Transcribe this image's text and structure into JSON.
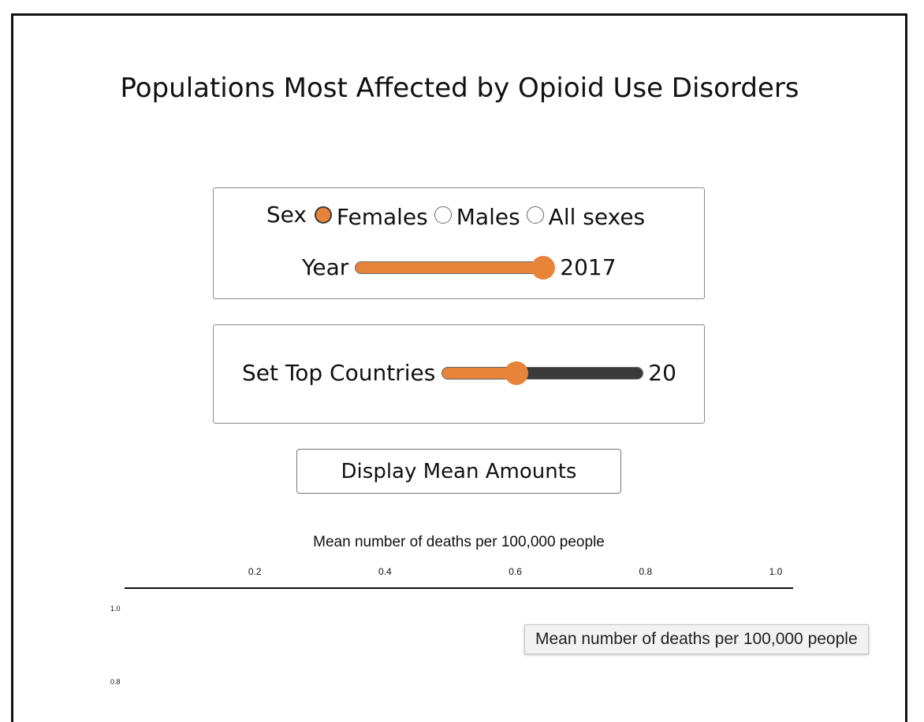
{
  "title": "Populations Most Affected by Opioid Use Disorders",
  "filters": {
    "sex_label": "Sex",
    "sex_options": [
      {
        "label": "Females",
        "checked": true
      },
      {
        "label": "Males",
        "checked": false
      },
      {
        "label": "All sexes",
        "checked": false
      }
    ],
    "year_label": "Year",
    "year_value": "2017",
    "year_slider_fraction": 1.0
  },
  "top_countries": {
    "label": "Set Top Countries",
    "value": "20",
    "slider_fraction": 0.35
  },
  "display_button_label": "Display Mean Amounts",
  "chart_data": {
    "type": "bar",
    "title": "",
    "xlabel": "Mean number of deaths per 100,000 people",
    "ylabel": "",
    "x_ticks": [
      "0.2",
      "0.4",
      "0.6",
      "0.8",
      "1.0"
    ],
    "y_ticks": [
      "1.0",
      "0.8"
    ],
    "xlim": [
      0,
      1
    ],
    "ylim": [
      0,
      1
    ],
    "categories": [],
    "values": []
  },
  "tooltip": "Mean number of deaths per 100,000 people",
  "colors": {
    "accent": "#e8833a",
    "track_dark": "#3a3a3a"
  }
}
